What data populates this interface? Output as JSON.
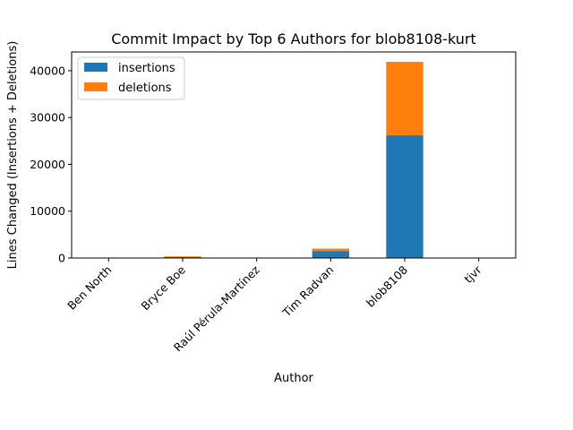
{
  "chart_data": {
    "type": "bar",
    "stacked": true,
    "title": "Commit Impact by Top 6 Authors for blob8108-kurt",
    "xlabel": "Author",
    "ylabel": "Lines Changed (Insertions + Deletions)",
    "categories": [
      "Ben North",
      "Bryce Boe",
      "Raúl Pérula-Martínez",
      "Tim Radvan",
      "blob8108",
      "tjvr"
    ],
    "series": [
      {
        "name": "insertions",
        "color": "#1f77b4",
        "values": [
          20,
          200,
          5,
          1500,
          26200,
          10
        ]
      },
      {
        "name": "deletions",
        "color": "#ff7f0e",
        "values": [
          10,
          150,
          5,
          500,
          15700,
          5
        ]
      }
    ],
    "ylim": [
      0,
      44000
    ],
    "yticks": [
      0,
      10000,
      20000,
      30000,
      40000
    ],
    "grid": false,
    "legend_position": "top-left"
  }
}
